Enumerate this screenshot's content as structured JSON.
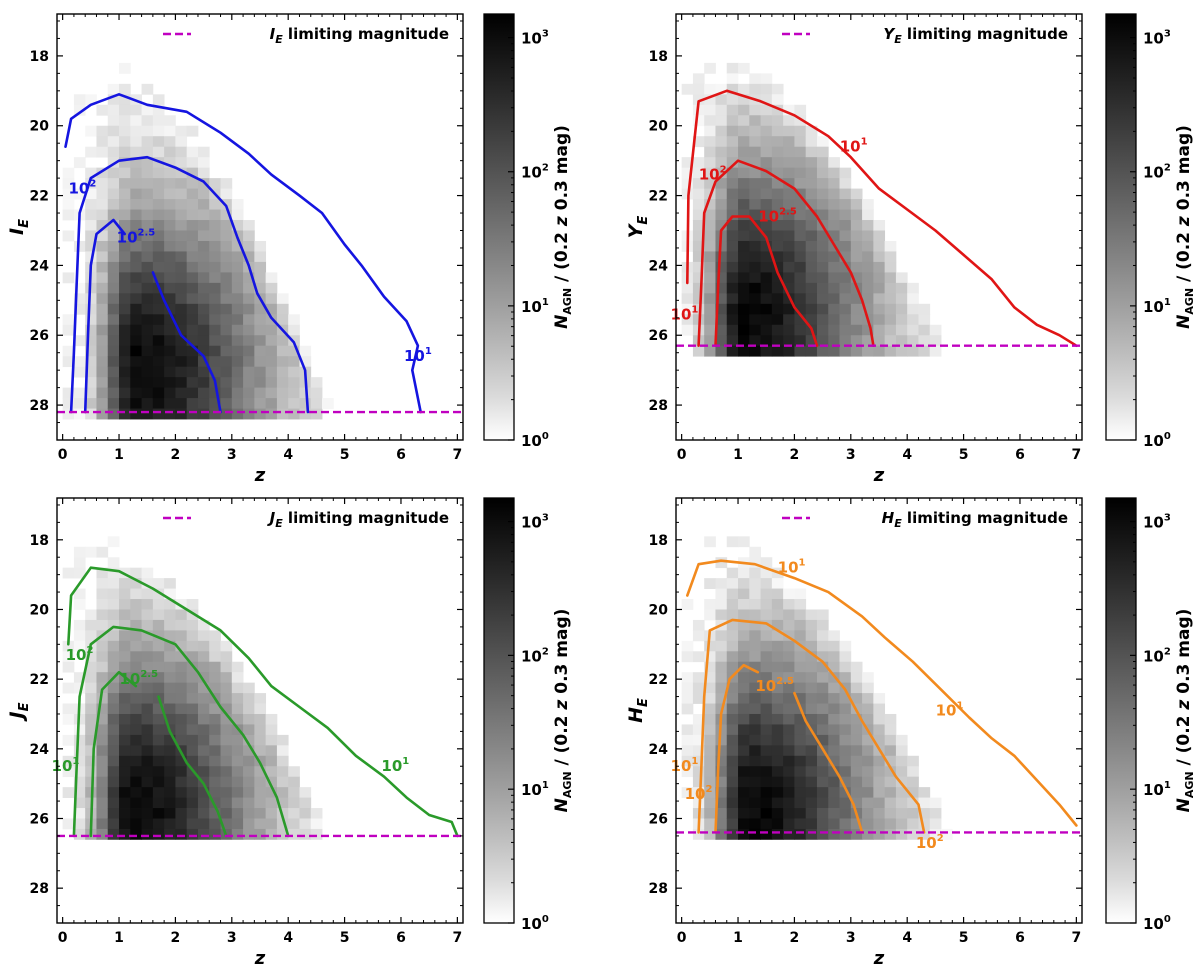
{
  "figure": {
    "colorbar": {
      "label": "N_AGN / (0.2 z 0.3 mag)",
      "label_parts": {
        "n": "N",
        "sub": "AGN",
        "rest": " / (0.2 ",
        "z": "z",
        "tail": " 0.3 mag)"
      },
      "scale": "log",
      "range": [
        1,
        1500
      ],
      "tick_values": [
        1,
        10,
        100,
        1000
      ],
      "tick_labels": [
        {
          "base": "10",
          "exp": "0"
        },
        {
          "base": "10",
          "exp": "1"
        },
        {
          "base": "10",
          "exp": "2"
        },
        {
          "base": "10",
          "exp": "3"
        }
      ]
    }
  },
  "chart_data": [
    {
      "type": "heatmap",
      "id": "IE",
      "xlabel": "z",
      "ylabel": {
        "letter": "I",
        "sub": "E"
      },
      "legend": {
        "letter": "I",
        "sub": "E",
        "text": "limiting magnitude"
      },
      "legend_loc": "top-right",
      "xlim": [
        -0.1,
        7.1
      ],
      "ylim": [
        29,
        16.8
      ],
      "xticks": [
        0,
        1,
        2,
        3,
        4,
        5,
        6,
        7
      ],
      "yticks": [
        18,
        20,
        22,
        24,
        26,
        28
      ],
      "limiting_magnitude": 28.2,
      "limit_color": "#c000c0",
      "contour_color": "#1515e0",
      "density": {
        "peak_z": 1.3,
        "peak_mag": 27.0,
        "top_mag": 18.6,
        "top_z": 1.0,
        "slope": 4.2,
        "zmax": 6.9
      },
      "contours": [
        {
          "level": "1",
          "points": [
            [
              0.05,
              20.6
            ],
            [
              0.15,
              19.8
            ],
            [
              0.5,
              19.4
            ],
            [
              1.0,
              19.1
            ],
            [
              1.5,
              19.4
            ],
            [
              2.2,
              19.6
            ],
            [
              2.8,
              20.2
            ],
            [
              3.3,
              20.8
            ],
            [
              3.7,
              21.4
            ],
            [
              4.2,
              22.0
            ],
            [
              4.6,
              22.5
            ],
            [
              5.0,
              23.4
            ],
            [
              5.3,
              24.0
            ],
            [
              5.7,
              24.9
            ],
            [
              6.1,
              25.6
            ],
            [
              6.3,
              26.3
            ],
            [
              6.2,
              27.0
            ],
            [
              6.35,
              28.2
            ]
          ]
        },
        {
          "level": "2",
          "points": [
            [
              0.15,
              28.2
            ],
            [
              0.2,
              26.5
            ],
            [
              0.25,
              24.5
            ],
            [
              0.3,
              22.5
            ],
            [
              0.5,
              21.5
            ],
            [
              1.0,
              21.0
            ],
            [
              1.5,
              20.9
            ],
            [
              2.0,
              21.2
            ],
            [
              2.5,
              21.6
            ],
            [
              2.9,
              22.3
            ],
            [
              3.1,
              23.2
            ],
            [
              3.3,
              24.0
            ],
            [
              3.45,
              24.8
            ],
            [
              3.7,
              25.5
            ],
            [
              4.1,
              26.2
            ],
            [
              4.3,
              27.0
            ],
            [
              4.35,
              28.2
            ]
          ]
        },
        {
          "level": "2.5",
          "points": [
            [
              0.4,
              28.2
            ],
            [
              0.45,
              26.0
            ],
            [
              0.5,
              24.0
            ],
            [
              0.6,
              23.1
            ],
            [
              0.9,
              22.7
            ],
            [
              1.1,
              23.1
            ]
          ]
        },
        {
          "level": "2.5",
          "points": [
            [
              1.6,
              24.2
            ],
            [
              1.8,
              25.0
            ],
            [
              2.1,
              26.0
            ],
            [
              2.5,
              26.6
            ],
            [
              2.7,
              27.3
            ],
            [
              2.8,
              28.2
            ]
          ]
        }
      ],
      "contour_labels": [
        {
          "base": "10",
          "exp": "2",
          "z": 0.35,
          "mag": 21.8
        },
        {
          "base": "10",
          "exp": "2.5",
          "z": 1.3,
          "mag": 23.2
        },
        {
          "base": "10",
          "exp": "1",
          "z": 6.3,
          "mag": 26.6
        }
      ]
    },
    {
      "type": "heatmap",
      "id": "YE",
      "xlabel": "z",
      "ylabel": {
        "letter": "Y",
        "sub": "E"
      },
      "legend": {
        "letter": "Y",
        "sub": "E",
        "text": "limiting magnitude"
      },
      "legend_loc": "top-right",
      "xlim": [
        -0.1,
        7.1
      ],
      "ylim": [
        29,
        16.8
      ],
      "xticks": [
        0,
        1,
        2,
        3,
        4,
        5,
        6,
        7
      ],
      "yticks": [
        18,
        20,
        22,
        24,
        26,
        28
      ],
      "limiting_magnitude": 26.3,
      "limit_color": "#c000c0",
      "contour_color": "#e01515",
      "density": {
        "peak_z": 1.1,
        "peak_mag": 25.5,
        "top_mag": 18.4,
        "top_z": 0.8,
        "slope": 3.4,
        "zmax": 7.0
      },
      "contours": [
        {
          "level": "1",
          "points": [
            [
              0.1,
              24.5
            ],
            [
              0.12,
              22.0
            ],
            [
              0.3,
              19.3
            ],
            [
              0.8,
              19.0
            ],
            [
              1.4,
              19.3
            ],
            [
              2.0,
              19.7
            ],
            [
              2.6,
              20.3
            ],
            [
              3.0,
              20.9
            ],
            [
              3.5,
              21.8
            ],
            [
              4.0,
              22.4
            ],
            [
              4.5,
              23.0
            ],
            [
              5.0,
              23.7
            ],
            [
              5.5,
              24.4
            ],
            [
              5.9,
              25.2
            ],
            [
              6.3,
              25.7
            ],
            [
              6.7,
              26.0
            ],
            [
              7.0,
              26.3
            ]
          ]
        },
        {
          "level": "2",
          "points": [
            [
              0.3,
              26.3
            ],
            [
              0.35,
              24.5
            ],
            [
              0.4,
              22.5
            ],
            [
              0.6,
              21.6
            ],
            [
              1.0,
              21.0
            ],
            [
              1.5,
              21.3
            ],
            [
              2.0,
              21.8
            ],
            [
              2.4,
              22.6
            ],
            [
              2.7,
              23.4
            ],
            [
              3.0,
              24.2
            ],
            [
              3.2,
              25.0
            ],
            [
              3.35,
              25.8
            ],
            [
              3.4,
              26.3
            ]
          ]
        },
        {
          "level": "2.5",
          "points": [
            [
              0.6,
              26.3
            ],
            [
              0.65,
              24.5
            ],
            [
              0.7,
              23.0
            ],
            [
              0.9,
              22.6
            ],
            [
              1.2,
              22.6
            ],
            [
              1.5,
              23.2
            ],
            [
              1.7,
              24.2
            ],
            [
              2.0,
              25.2
            ],
            [
              2.3,
              25.8
            ],
            [
              2.4,
              26.3
            ]
          ]
        }
      ],
      "contour_labels": [
        {
          "base": "10",
          "exp": "1",
          "z": 3.05,
          "mag": 20.6
        },
        {
          "base": "10",
          "exp": "2",
          "z": 0.55,
          "mag": 21.4
        },
        {
          "base": "10",
          "exp": "2.5",
          "z": 1.7,
          "mag": 22.6
        },
        {
          "base": "10",
          "exp": "1",
          "z": 0.05,
          "mag": 25.4
        }
      ]
    },
    {
      "type": "heatmap",
      "id": "JE",
      "xlabel": "z",
      "ylabel": {
        "letter": "J",
        "sub": "E"
      },
      "legend": {
        "letter": "J",
        "sub": "E",
        "text": "limiting magnitude"
      },
      "legend_loc": "top-right",
      "xlim": [
        -0.1,
        7.1
      ],
      "ylim": [
        29,
        16.8
      ],
      "xticks": [
        0,
        1,
        2,
        3,
        4,
        5,
        6,
        7
      ],
      "yticks": [
        18,
        20,
        22,
        24,
        26,
        28
      ],
      "limiting_magnitude": 26.5,
      "limit_color": "#c000c0",
      "contour_color": "#2a9a2a",
      "density": {
        "peak_z": 1.2,
        "peak_mag": 25.8,
        "top_mag": 18.3,
        "top_z": 0.8,
        "slope": 3.3,
        "zmax": 7.0
      },
      "contours": [
        {
          "level": "1",
          "points": [
            [
              0.1,
              21.0
            ],
            [
              0.15,
              19.6
            ],
            [
              0.5,
              18.8
            ],
            [
              1.0,
              18.9
            ],
            [
              1.6,
              19.4
            ],
            [
              2.2,
              20.0
            ],
            [
              2.8,
              20.6
            ],
            [
              3.3,
              21.4
            ],
            [
              3.7,
              22.2
            ],
            [
              4.2,
              22.8
            ],
            [
              4.7,
              23.4
            ],
            [
              5.2,
              24.2
            ],
            [
              5.7,
              24.8
            ],
            [
              6.1,
              25.4
            ],
            [
              6.5,
              25.9
            ],
            [
              6.9,
              26.1
            ],
            [
              7.0,
              26.5
            ]
          ]
        },
        {
          "level": "2",
          "points": [
            [
              0.2,
              26.5
            ],
            [
              0.25,
              24.5
            ],
            [
              0.3,
              22.5
            ],
            [
              0.5,
              21.0
            ],
            [
              0.9,
              20.5
            ],
            [
              1.4,
              20.6
            ],
            [
              2.0,
              21.0
            ],
            [
              2.4,
              21.8
            ],
            [
              2.8,
              22.8
            ],
            [
              3.2,
              23.6
            ],
            [
              3.5,
              24.4
            ],
            [
              3.8,
              25.4
            ],
            [
              4.0,
              26.5
            ]
          ]
        },
        {
          "level": "2.5",
          "points": [
            [
              0.5,
              26.5
            ],
            [
              0.55,
              24.0
            ],
            [
              0.7,
              22.3
            ],
            [
              1.0,
              21.8
            ],
            [
              1.3,
              22.2
            ]
          ]
        },
        {
          "level": "2.5",
          "points": [
            [
              1.7,
              22.5
            ],
            [
              1.9,
              23.5
            ],
            [
              2.2,
              24.4
            ],
            [
              2.5,
              25.0
            ],
            [
              2.75,
              25.8
            ],
            [
              2.9,
              26.5
            ]
          ]
        }
      ],
      "contour_labels": [
        {
          "base": "10",
          "exp": "2",
          "z": 0.3,
          "mag": 21.3
        },
        {
          "base": "10",
          "exp": "2.5",
          "z": 1.35,
          "mag": 22.0
        },
        {
          "base": "10",
          "exp": "1",
          "z": 5.9,
          "mag": 24.5
        },
        {
          "base": "10",
          "exp": "1",
          "z": 0.05,
          "mag": 24.5
        }
      ]
    },
    {
      "type": "heatmap",
      "id": "HE",
      "xlabel": "z",
      "ylabel": {
        "letter": "H",
        "sub": "E"
      },
      "legend": {
        "letter": "H",
        "sub": "E",
        "text": "limiting magnitude"
      },
      "legend_loc": "top-right",
      "xlim": [
        -0.1,
        7.1
      ],
      "ylim": [
        29,
        16.8
      ],
      "xticks": [
        0,
        1,
        2,
        3,
        4,
        5,
        6,
        7
      ],
      "yticks": [
        18,
        20,
        22,
        24,
        26,
        28
      ],
      "limiting_magnitude": 26.4,
      "limit_color": "#c000c0",
      "contour_color": "#f28a1e",
      "density": {
        "peak_z": 1.2,
        "peak_mag": 25.8,
        "top_mag": 18.2,
        "top_z": 0.8,
        "slope": 3.3,
        "zmax": 7.0
      },
      "contours": [
        {
          "level": "1",
          "points": [
            [
              0.1,
              19.6
            ],
            [
              0.3,
              18.7
            ],
            [
              0.7,
              18.6
            ],
            [
              1.3,
              18.7
            ],
            [
              2.0,
              19.1
            ],
            [
              2.6,
              19.5
            ],
            [
              3.2,
              20.2
            ],
            [
              3.6,
              20.8
            ],
            [
              4.1,
              21.5
            ],
            [
              4.6,
              22.3
            ],
            [
              5.1,
              23.1
            ],
            [
              5.5,
              23.7
            ],
            [
              5.9,
              24.2
            ],
            [
              6.3,
              24.9
            ],
            [
              6.7,
              25.6
            ],
            [
              7.0,
              26.2
            ]
          ]
        },
        {
          "level": "2",
          "points": [
            [
              0.3,
              26.4
            ],
            [
              0.35,
              24.5
            ],
            [
              0.4,
              22.5
            ],
            [
              0.5,
              20.6
            ],
            [
              0.9,
              20.3
            ],
            [
              1.5,
              20.4
            ],
            [
              2.0,
              20.9
            ],
            [
              2.5,
              21.5
            ],
            [
              2.9,
              22.3
            ],
            [
              3.2,
              23.2
            ],
            [
              3.5,
              24.0
            ],
            [
              3.8,
              24.8
            ],
            [
              4.2,
              25.6
            ],
            [
              4.3,
              26.4
            ]
          ]
        },
        {
          "level": "2.5",
          "points": [
            [
              0.6,
              26.4
            ],
            [
              0.65,
              24.5
            ],
            [
              0.7,
              23.0
            ],
            [
              0.85,
              22.0
            ],
            [
              1.1,
              21.6
            ],
            [
              1.35,
              21.8
            ]
          ]
        },
        {
          "level": "2.5",
          "points": [
            [
              2.0,
              22.4
            ],
            [
              2.2,
              23.2
            ],
            [
              2.5,
              24.0
            ],
            [
              2.8,
              24.8
            ],
            [
              3.05,
              25.6
            ],
            [
              3.2,
              26.4
            ]
          ]
        }
      ],
      "contour_labels": [
        {
          "base": "10",
          "exp": "1",
          "z": 1.95,
          "mag": 18.8
        },
        {
          "base": "10",
          "exp": "2.5",
          "z": 1.65,
          "mag": 22.2
        },
        {
          "base": "10",
          "exp": "1",
          "z": 4.75,
          "mag": 22.9
        },
        {
          "base": "10",
          "exp": "2",
          "z": 0.3,
          "mag": 25.3
        },
        {
          "base": "10",
          "exp": "1",
          "z": 0.05,
          "mag": 24.5
        },
        {
          "base": "10",
          "exp": "2",
          "z": 4.4,
          "mag": 26.7
        }
      ]
    }
  ]
}
